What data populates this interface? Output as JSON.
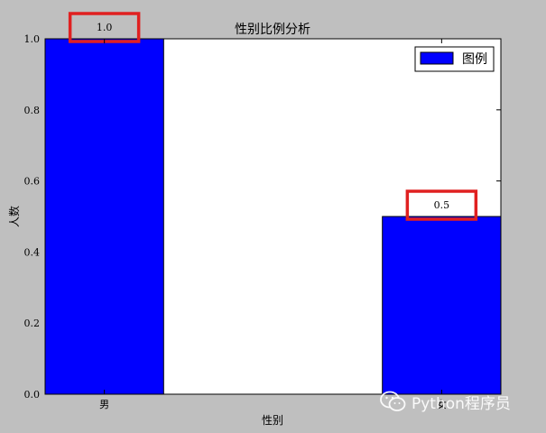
{
  "chart_data": {
    "type": "bar",
    "title": "性别比例分析",
    "xlabel": "性别",
    "ylabel": "人数",
    "categories": [
      "男",
      "女"
    ],
    "values": [
      1.0,
      0.5
    ],
    "data_labels": [
      "1.0",
      "0.5"
    ],
    "ylim": [
      0,
      1.0
    ],
    "yticks": [
      "0.0",
      "0.2",
      "0.4",
      "0.6",
      "0.8",
      "1.0"
    ],
    "legend": {
      "label": "图例",
      "position": "top-right"
    },
    "colors": {
      "bar": "#0000ff",
      "highlight": "#e02020",
      "background": "#bfbfbf",
      "plot": "#ffffff"
    }
  },
  "watermark": {
    "text": "Python程序员",
    "icon": "wechat-icon"
  }
}
